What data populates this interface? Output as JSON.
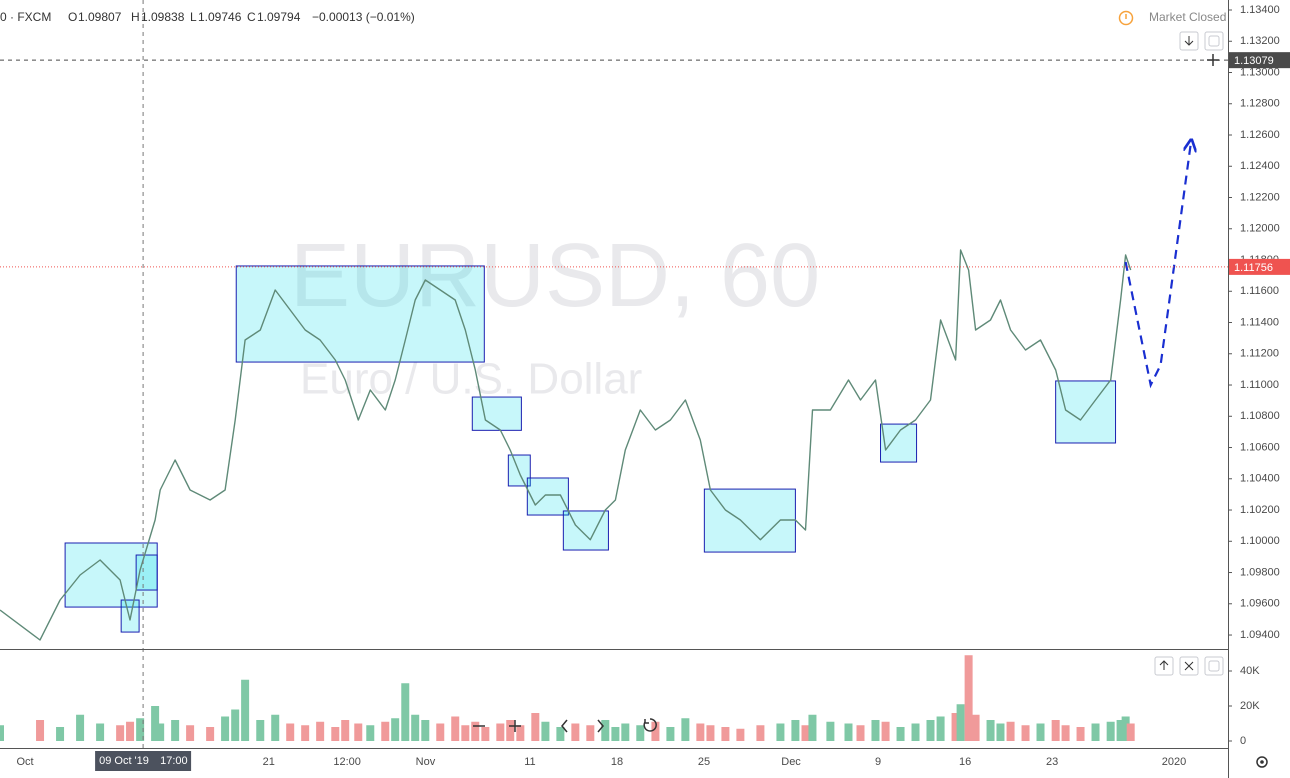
{
  "header": {
    "source": "0 · FXCM",
    "ohlc": [
      {
        "label": "O",
        "value": "1.09807"
      },
      {
        "label": "H",
        "value": "1.09838"
      },
      {
        "label": "L",
        "value": "1.09746"
      },
      {
        "label": "C",
        "value": "1.09794"
      }
    ],
    "change": "−0.00013 (−0.01%)",
    "status": "Market Closed"
  },
  "watermark": {
    "symbol": "EURUSD, 60",
    "description": "Euro / U.S. Dollar"
  },
  "chart_data": {
    "type": "line",
    "color": "#5f8a78",
    "grid": true,
    "x": [
      -1.44,
      0.86,
      2.01,
      3.16,
      4.31,
      5.46,
      6.03,
      6.61,
      7.47,
      7.76,
      8.62,
      9.48,
      10.63,
      11.49,
      12.07,
      12.64,
      13.51,
      14.37,
      15.23,
      16.09,
      16.95,
      17.82,
      18.39,
      19.14,
      19.83,
      20.69,
      21.26,
      21.84,
      22.41,
      22.99,
      23.85,
      24.71,
      25.29,
      25.86,
      26.44,
      27.3,
      27.87,
      28.45,
      29.31,
      29.89,
      30.75,
      31.61,
      32.47,
      33.33,
      33.91,
      34.48,
      35.34,
      36.21,
      37.07,
      37.93,
      38.79,
      39.37,
      40.23,
      41.09,
      42.24,
      43.39,
      44.25,
      44.83,
      45.23,
      46.26,
      47.3,
      47.99,
      48.85,
      49.43,
      50.29,
      51.15,
      52.01,
      52.59,
      53.45,
      53.74,
      54.2,
      54.6,
      55.46,
      56.03,
      56.61,
      57.47,
      58.33,
      59.2,
      59.77,
      60.63,
      61.49,
      62.36,
      62.93,
      63.22,
      63.51
    ],
    "values": [
      1.0956,
      1.09368,
      1.09624,
      1.09784,
      1.0988,
      1.09752,
      1.09496,
      1.09816,
      1.10136,
      1.10328,
      1.1052,
      1.10328,
      1.10264,
      1.10328,
      1.10776,
      1.11288,
      1.11352,
      1.11608,
      1.1148,
      1.11352,
      1.11288,
      1.1116,
      1.11032,
      1.10776,
      1.10968,
      1.1084,
      1.11032,
      1.11288,
      1.11544,
      1.11672,
      1.11608,
      1.11544,
      1.11352,
      1.11096,
      1.10776,
      1.10712,
      1.10584,
      1.10424,
      1.10232,
      1.10296,
      1.10296,
      1.10104,
      1.1001,
      1.102,
      1.10264,
      1.10584,
      1.1084,
      1.10712,
      1.10776,
      1.10904,
      1.10648,
      1.10328,
      1.102,
      1.10136,
      1.1001,
      1.10136,
      1.10136,
      1.10072,
      1.1084,
      1.1084,
      1.11032,
      1.10904,
      1.11032,
      1.10584,
      1.10712,
      1.10776,
      1.10904,
      1.11416,
      1.1116,
      1.11864,
      1.11736,
      1.11352,
      1.11416,
      1.11544,
      1.11352,
      1.11224,
      1.11288,
      1.11096,
      1.1084,
      1.10776,
      1.10904,
      1.11032,
      1.11544,
      1.11832,
      1.11736
    ],
    "xlim": [
      -1.44,
      69.1
    ],
    "xticks": [
      {
        "value": 0,
        "label": "Oct"
      },
      {
        "value": 14,
        "label": "21"
      },
      {
        "value": 18.5,
        "label": "12:00"
      },
      {
        "value": 23,
        "label": "Nov"
      },
      {
        "value": 29,
        "label": "11"
      },
      {
        "value": 34,
        "label": "18"
      },
      {
        "value": 39,
        "label": "25"
      },
      {
        "value": 44,
        "label": "Dec"
      },
      {
        "value": 49,
        "label": "9"
      },
      {
        "value": 54,
        "label": "16"
      },
      {
        "value": 59,
        "label": "23"
      },
      {
        "value": 66,
        "label": "2020"
      }
    ],
    "ylim": [
      1.09317,
      1.13464
    ],
    "yticks": [
      {
        "value": 1.094,
        "label": "1.09400"
      },
      {
        "value": 1.096,
        "label": "1.09600"
      },
      {
        "value": 1.098,
        "label": "1.09800"
      },
      {
        "value": 1.1,
        "label": "1.10000"
      },
      {
        "value": 1.102,
        "label": "1.10200"
      },
      {
        "value": 1.104,
        "label": "1.10400"
      },
      {
        "value": 1.106,
        "label": "1.10600"
      },
      {
        "value": 1.108,
        "label": "1.10800"
      },
      {
        "value": 1.11,
        "label": "1.11000"
      },
      {
        "value": 1.112,
        "label": "1.11200"
      },
      {
        "value": 1.114,
        "label": "1.11400"
      },
      {
        "value": 1.116,
        "label": "1.11600"
      },
      {
        "value": 1.118,
        "label": "1.11800"
      },
      {
        "value": 1.12,
        "label": "1.12000"
      },
      {
        "value": 1.122,
        "label": "1.12200"
      },
      {
        "value": 1.124,
        "label": "1.12400"
      },
      {
        "value": 1.126,
        "label": "1.12600"
      },
      {
        "value": 1.128,
        "label": "1.12800"
      },
      {
        "value": 1.13,
        "label": "1.13000"
      },
      {
        "value": 1.132,
        "label": "1.13200"
      },
      {
        "value": 1.134,
        "label": "1.13400"
      }
    ],
    "price_lines": [
      {
        "value": 1.11756,
        "color": "#ef5350"
      },
      {
        "value": 1.13079,
        "color": "#4a4a4a"
      }
    ],
    "crosshair": {
      "x": 6.78,
      "date": "09 Oct '19",
      "time": "17:00"
    },
    "zones": [
      {
        "from": 12.13,
        "to": 26.38,
        "top": 1.11762,
        "bottom": 1.11147
      },
      {
        "from": 2.3,
        "to": 7.59,
        "top": 1.09989,
        "bottom": 1.09579
      },
      {
        "from": 5.52,
        "to": 6.55,
        "top": 1.09624,
        "bottom": 1.09419
      },
      {
        "from": 6.38,
        "to": 7.59,
        "top": 1.09912,
        "bottom": 1.09688
      },
      {
        "from": 25.69,
        "to": 28.51,
        "top": 1.10923,
        "bottom": 1.1071
      },
      {
        "from": 27.76,
        "to": 29.02,
        "top": 1.10552,
        "bottom": 1.10354
      },
      {
        "from": 28.85,
        "to": 31.21,
        "top": 1.10405,
        "bottom": 1.10168
      },
      {
        "from": 30.92,
        "to": 33.51,
        "top": 1.10194,
        "bottom": 1.09944
      },
      {
        "from": 39.02,
        "to": 44.25,
        "top": 1.10334,
        "bottom": 1.09931
      },
      {
        "from": 49.14,
        "to": 51.21,
        "top": 1.1075,
        "bottom": 1.10507
      },
      {
        "from": 59.2,
        "to": 62.64,
        "top": 1.11026,
        "bottom": 1.10629
      }
    ],
    "zone_color": "#1a1fb0",
    "projection": {
      "x": [
        63.22,
        64.66,
        65.23,
        66.95
      ],
      "y": [
        1.11787,
        1.11,
        1.11128,
        1.12536
      ],
      "color": "#1a2fd1"
    },
    "volume": {
      "values": [
        9000,
        12000,
        8000,
        15000,
        10000,
        9000,
        11000,
        13000,
        20000,
        10000,
        12000,
        9000,
        8000,
        14000,
        18000,
        35000,
        12000,
        15000,
        10000,
        9000,
        11000,
        8000,
        12000,
        10000,
        9000,
        11000,
        13000,
        33000,
        15000,
        12000,
        10000,
        14000,
        9000,
        11000,
        8000,
        10000,
        12000,
        9000,
        16000,
        11000,
        8000,
        10000,
        9000,
        12000,
        8000,
        10000,
        9000,
        11000,
        8000,
        13000,
        10000,
        9000,
        8000,
        7000,
        9000,
        10000,
        12000,
        9000,
        15000,
        11000,
        10000,
        9000,
        12000,
        11000,
        8000,
        10000,
        12000,
        14000,
        16000,
        21000,
        49000,
        15000,
        12000,
        10000,
        11000,
        9000,
        10000,
        12000,
        9000,
        8000,
        10000,
        11000,
        12000,
        14000,
        10000
      ],
      "ylim": [
        -4000,
        49140
      ],
      "yticks": [
        0,
        {
          "value": 20000,
          "label": "20K"
        },
        {
          "value": 40000,
          "label": "40K"
        }
      ],
      "up_color": "#7fc8a6",
      "down_color": "#f09a9a"
    }
  }
}
